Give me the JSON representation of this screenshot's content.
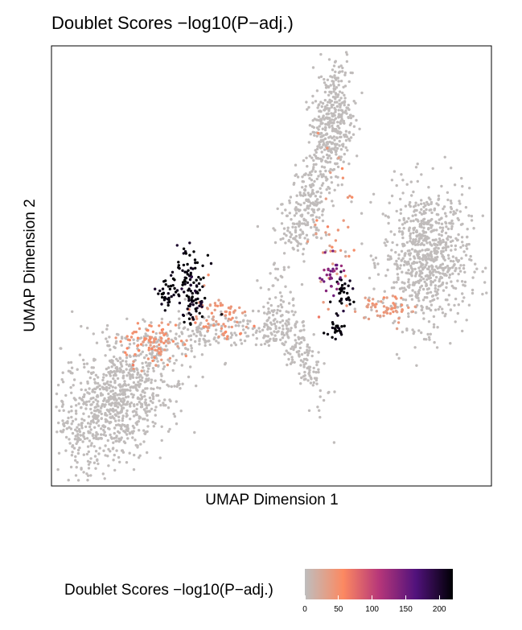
{
  "chart_data": {
    "type": "scatter",
    "title": "Doublet Scores −log10(P−adj.)",
    "xlabel": "UMAP Dimension 1",
    "ylabel": "UMAP Dimension 2",
    "xlim": [
      0,
      100
    ],
    "ylim": [
      0,
      100
    ],
    "grid": false,
    "legend": {
      "position": "bottom",
      "title": "Doublet Scores −log10(P−adj.)",
      "ticks": [
        "0",
        "50",
        "100",
        "150",
        "200"
      ],
      "range": [
        0,
        220
      ],
      "colors": [
        "#bebebe",
        "#fc8961",
        "#b73779",
        "#51127c",
        "#000004"
      ]
    },
    "clusters": [
      {
        "name": "",
        "cx": 13,
        "cy": 18,
        "sx": 6,
        "sy": 9,
        "angle": -40,
        "n": 900,
        "score": 2
      },
      {
        "name": "",
        "cx": 86,
        "cy": 52,
        "sx": 5,
        "sy": 8,
        "angle": 0,
        "n": 750,
        "score": 2
      },
      {
        "name": "",
        "cx": 64,
        "cy": 83,
        "sx": 2.5,
        "sy": 8,
        "angle": -8,
        "n": 420,
        "score": 2
      },
      {
        "name": "",
        "cx": 57,
        "cy": 62,
        "sx": 2.5,
        "sy": 6,
        "angle": -20,
        "n": 200,
        "score": 2
      },
      {
        "name": "",
        "cx": 56,
        "cy": 32,
        "sx": 1.8,
        "sy": 8,
        "angle": 20,
        "n": 180,
        "score": 2
      },
      {
        "name": "",
        "cx": 50,
        "cy": 36,
        "sx": 1.5,
        "sy": 2.5,
        "angle": 0,
        "n": 60,
        "score": 2
      },
      {
        "name": "",
        "cx": 33,
        "cy": 34,
        "sx": 8,
        "sy": 2.5,
        "angle": 10,
        "n": 180,
        "score": 2
      },
      {
        "name": "",
        "cx": 22,
        "cy": 32,
        "sx": 3,
        "sy": 2.5,
        "angle": 0,
        "n": 90,
        "score": 45
      },
      {
        "name": "",
        "cx": 37,
        "cy": 38,
        "sx": 4,
        "sy": 3,
        "angle": 0,
        "n": 70,
        "score": 40
      },
      {
        "name": "",
        "cx": 77,
        "cy": 40,
        "sx": 3,
        "sy": 2,
        "angle": 0,
        "n": 60,
        "score": 40
      },
      {
        "name": "",
        "cx": 64,
        "cy": 57,
        "sx": 2,
        "sy": 8,
        "angle": 0,
        "n": 40,
        "score": 40
      },
      {
        "name": "",
        "cx": 31,
        "cy": 47,
        "sx": 1.8,
        "sy": 4,
        "angle": 0,
        "n": 70,
        "score": 215
      },
      {
        "name": "",
        "cx": 26,
        "cy": 43,
        "sx": 1.5,
        "sy": 2,
        "angle": 0,
        "n": 35,
        "score": 215
      },
      {
        "name": "",
        "cx": 32,
        "cy": 41,
        "sx": 1.5,
        "sy": 2.5,
        "angle": 0,
        "n": 40,
        "score": 215
      },
      {
        "name": "",
        "cx": 67,
        "cy": 44,
        "sx": 1.2,
        "sy": 2,
        "angle": 0,
        "n": 35,
        "score": 215
      },
      {
        "name": "",
        "cx": 65,
        "cy": 35,
        "sx": 1,
        "sy": 1.5,
        "angle": 0,
        "n": 25,
        "score": 215
      },
      {
        "name": "",
        "cx": 64,
        "cy": 48,
        "sx": 1.5,
        "sy": 2,
        "angle": 0,
        "n": 30,
        "score": 140
      }
    ]
  }
}
